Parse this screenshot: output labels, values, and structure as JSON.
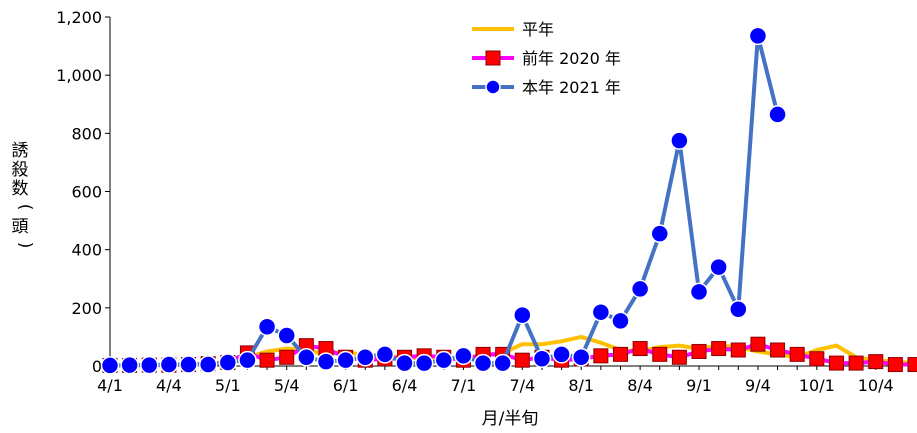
{
  "chart_data": {
    "type": "line",
    "xlabel": "月/半旬",
    "ylabel": "誘殺数(頭)",
    "ylim": [
      0,
      1200
    ],
    "yticks": [
      "0",
      "200",
      "400",
      "600",
      "800",
      "1,000",
      "1,200"
    ],
    "xtick_labels": [
      "4/1",
      "4/4",
      "5/1",
      "5/4",
      "6/1",
      "6/4",
      "7/1",
      "7/4",
      "8/1",
      "8/4",
      "9/1",
      "9/4",
      "10/1",
      "10/4"
    ],
    "xtick_index": [
      0,
      3,
      6,
      9,
      12,
      15,
      18,
      21,
      24,
      27,
      30,
      33,
      36,
      39
    ],
    "num_periods": 42,
    "legend_position": "top-center",
    "series": [
      {
        "name": "平年",
        "color": "#FFC000",
        "marker": "none",
        "values": [
          2,
          3,
          3,
          5,
          6,
          8,
          15,
          30,
          50,
          60,
          55,
          40,
          50,
          35,
          40,
          25,
          30,
          25,
          30,
          35,
          45,
          75,
          75,
          85,
          100,
          80,
          55,
          50,
          65,
          70,
          60,
          70,
          65,
          50,
          40,
          30,
          55,
          70,
          30,
          20,
          15,
          10
        ]
      },
      {
        "name": "前年 2020 年",
        "color": "#FF00FF",
        "marker": "square",
        "marker_color": "#FF0000",
        "values": [
          2,
          2,
          3,
          3,
          5,
          8,
          12,
          45,
          20,
          30,
          70,
          60,
          30,
          20,
          25,
          30,
          35,
          30,
          20,
          40,
          40,
          20,
          30,
          20,
          25,
          35,
          40,
          60,
          40,
          30,
          50,
          60,
          55,
          75,
          55,
          40,
          25,
          10,
          10,
          15,
          5,
          5
        ]
      },
      {
        "name": "本年 2021 年",
        "color": "#4472C4",
        "marker": "circle",
        "marker_color": "#0000FF",
        "values": [
          2,
          3,
          3,
          5,
          5,
          5,
          12,
          20,
          135,
          105,
          30,
          15,
          20,
          30,
          40,
          10,
          10,
          20,
          35,
          10,
          10,
          175,
          25,
          40,
          30,
          185,
          155,
          265,
          455,
          775,
          255,
          340,
          195,
          1135,
          865
        ]
      }
    ]
  }
}
